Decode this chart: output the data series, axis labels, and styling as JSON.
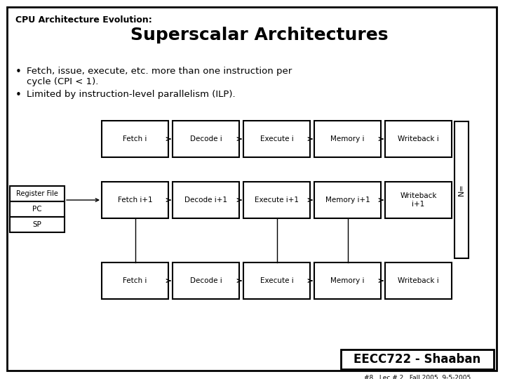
{
  "title_small": "CPU Architecture Evolution:",
  "title_large": "Superscalar Architectures",
  "bullet1": "Fetch, issue, execute, etc. more than one instruction per\ncycle (CPI < 1).",
  "bullet2": "Limited by instruction-level parallelism (ILP).",
  "bg_color": "#ffffff",
  "border_color": "#000000",
  "box_color": "#ffffff",
  "footer_text": "EECC722 - Shaaban",
  "footer_sub": "#8   Lec # 2   Fall 2005  9-5-2005",
  "row1_labels": [
    "Fetch i",
    "Decode i",
    "Execute i",
    "Memory i",
    "Writeback i"
  ],
  "row2_labels": [
    "Fetch i+1",
    "Decode i+1",
    "Execute i+1",
    "Memory i+1",
    "Writeback\ni+1"
  ],
  "row3_labels": [
    "Fetch i",
    "Decode i",
    "Execute i",
    "Memory i",
    "Writeback i"
  ],
  "reg_labels": [
    "Register File",
    "PC",
    "SP"
  ],
  "side_label": "N="
}
